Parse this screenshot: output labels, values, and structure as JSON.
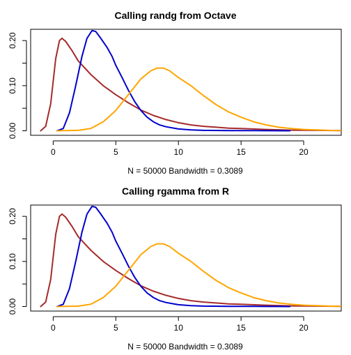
{
  "chart_data": [
    {
      "type": "line",
      "title": "Calling randg from Octave",
      "subtitle": "N = 50000   Bandwidth = 0.3089",
      "xlim": [
        -1.8,
        23
      ],
      "ylim": [
        -0.01,
        0.225
      ],
      "x_ticks": [
        "0",
        "5",
        "10",
        "15",
        "20"
      ],
      "y_ticks": [
        "0.00",
        "0.10",
        "0.20"
      ],
      "grid": false,
      "series": [
        {
          "color": "#a52a2a",
          "points": [
            [
              -1,
              0
            ],
            [
              -0.6,
              0.01
            ],
            [
              -0.2,
              0.06
            ],
            [
              0.2,
              0.16
            ],
            [
              0.5,
              0.2
            ],
            [
              0.7,
              0.205
            ],
            [
              1,
              0.198
            ],
            [
              1.5,
              0.178
            ],
            [
              2,
              0.155
            ],
            [
              3,
              0.125
            ],
            [
              4,
              0.1
            ],
            [
              5,
              0.08
            ],
            [
              6,
              0.062
            ],
            [
              7,
              0.046
            ],
            [
              8,
              0.034
            ],
            [
              9,
              0.025
            ],
            [
              10,
              0.018
            ],
            [
              11,
              0.013
            ],
            [
              12,
              0.01
            ],
            [
              13,
              0.008
            ],
            [
              14,
              0.006
            ],
            [
              15,
              0.005
            ],
            [
              17,
              0.003
            ],
            [
              19,
              0.0015
            ],
            [
              21,
              0.001
            ],
            [
              23,
              0.0005
            ]
          ]
        },
        {
          "color": "#0000cd",
          "points": [
            [
              0.3,
              0
            ],
            [
              0.8,
              0.005
            ],
            [
              1.3,
              0.04
            ],
            [
              1.8,
              0.1
            ],
            [
              2.3,
              0.165
            ],
            [
              2.7,
              0.205
            ],
            [
              3.1,
              0.222
            ],
            [
              3.4,
              0.22
            ],
            [
              3.8,
              0.205
            ],
            [
              4.3,
              0.185
            ],
            [
              4.7,
              0.165
            ],
            [
              5,
              0.145
            ],
            [
              5.5,
              0.118
            ],
            [
              6,
              0.09
            ],
            [
              6.5,
              0.065
            ],
            [
              7,
              0.045
            ],
            [
              7.5,
              0.03
            ],
            [
              8,
              0.02
            ],
            [
              8.5,
              0.013
            ],
            [
              9,
              0.009
            ],
            [
              10,
              0.004
            ],
            [
              11,
              0.002
            ],
            [
              12,
              0.001
            ],
            [
              14,
              0.0005
            ],
            [
              16,
              0.0003
            ],
            [
              18.9,
              0
            ]
          ]
        },
        {
          "color": "#ffa500",
          "points": [
            [
              0.3,
              0
            ],
            [
              2,
              0.001
            ],
            [
              3,
              0.005
            ],
            [
              4,
              0.02
            ],
            [
              5,
              0.045
            ],
            [
              6,
              0.08
            ],
            [
              7,
              0.115
            ],
            [
              7.8,
              0.133
            ],
            [
              8.3,
              0.139
            ],
            [
              8.8,
              0.139
            ],
            [
              9.3,
              0.133
            ],
            [
              10,
              0.118
            ],
            [
              11,
              0.1
            ],
            [
              12,
              0.078
            ],
            [
              13,
              0.058
            ],
            [
              14,
              0.042
            ],
            [
              15,
              0.03
            ],
            [
              16,
              0.02
            ],
            [
              17,
              0.013
            ],
            [
              18,
              0.008
            ],
            [
              19,
              0.005
            ],
            [
              20,
              0.003
            ],
            [
              21,
              0.002
            ],
            [
              22,
              0.001
            ],
            [
              23,
              0.0005
            ]
          ]
        }
      ]
    },
    {
      "type": "line",
      "title": "Calling rgamma from R",
      "subtitle": "N = 50000   Bandwidth = 0.3089",
      "xlim": [
        -1.8,
        23
      ],
      "ylim": [
        -0.01,
        0.225
      ],
      "x_ticks": [
        "0",
        "5",
        "10",
        "15",
        "20"
      ],
      "y_ticks": [
        "0.00",
        "0.10",
        "0.20"
      ],
      "grid": false,
      "series": [
        {
          "color": "#a52a2a",
          "points": [
            [
              -1,
              0
            ],
            [
              -0.6,
              0.01
            ],
            [
              -0.2,
              0.06
            ],
            [
              0.2,
              0.16
            ],
            [
              0.5,
              0.2
            ],
            [
              0.7,
              0.205
            ],
            [
              1,
              0.198
            ],
            [
              1.5,
              0.178
            ],
            [
              2,
              0.155
            ],
            [
              3,
              0.125
            ],
            [
              4,
              0.1
            ],
            [
              5,
              0.08
            ],
            [
              6,
              0.062
            ],
            [
              7,
              0.046
            ],
            [
              8,
              0.034
            ],
            [
              9,
              0.025
            ],
            [
              10,
              0.018
            ],
            [
              11,
              0.013
            ],
            [
              12,
              0.01
            ],
            [
              13,
              0.008
            ],
            [
              14,
              0.006
            ],
            [
              15,
              0.005
            ],
            [
              17,
              0.003
            ],
            [
              19,
              0.0015
            ],
            [
              21,
              0.001
            ],
            [
              23,
              0.0005
            ]
          ]
        },
        {
          "color": "#0000cd",
          "points": [
            [
              0.3,
              0
            ],
            [
              0.8,
              0.005
            ],
            [
              1.3,
              0.04
            ],
            [
              1.8,
              0.1
            ],
            [
              2.3,
              0.165
            ],
            [
              2.7,
              0.205
            ],
            [
              3.1,
              0.222
            ],
            [
              3.4,
              0.22
            ],
            [
              3.8,
              0.205
            ],
            [
              4.3,
              0.185
            ],
            [
              4.7,
              0.165
            ],
            [
              5,
              0.145
            ],
            [
              5.5,
              0.118
            ],
            [
              6,
              0.09
            ],
            [
              6.5,
              0.065
            ],
            [
              7,
              0.045
            ],
            [
              7.5,
              0.03
            ],
            [
              8,
              0.02
            ],
            [
              8.5,
              0.013
            ],
            [
              9,
              0.009
            ],
            [
              10,
              0.004
            ],
            [
              11,
              0.002
            ],
            [
              12,
              0.001
            ],
            [
              14,
              0.0005
            ],
            [
              16,
              0.0003
            ],
            [
              18.9,
              0
            ]
          ]
        },
        {
          "color": "#ffa500",
          "points": [
            [
              0.3,
              0
            ],
            [
              2,
              0.001
            ],
            [
              3,
              0.005
            ],
            [
              4,
              0.02
            ],
            [
              5,
              0.045
            ],
            [
              6,
              0.08
            ],
            [
              7,
              0.115
            ],
            [
              7.8,
              0.133
            ],
            [
              8.3,
              0.139
            ],
            [
              8.8,
              0.139
            ],
            [
              9.3,
              0.133
            ],
            [
              10,
              0.118
            ],
            [
              11,
              0.1
            ],
            [
              12,
              0.078
            ],
            [
              13,
              0.058
            ],
            [
              14,
              0.042
            ],
            [
              15,
              0.03
            ],
            [
              16,
              0.02
            ],
            [
              17,
              0.013
            ],
            [
              18,
              0.008
            ],
            [
              19,
              0.005
            ],
            [
              20,
              0.003
            ],
            [
              21,
              0.002
            ],
            [
              22,
              0.001
            ],
            [
              23,
              0.0005
            ]
          ]
        }
      ]
    }
  ]
}
